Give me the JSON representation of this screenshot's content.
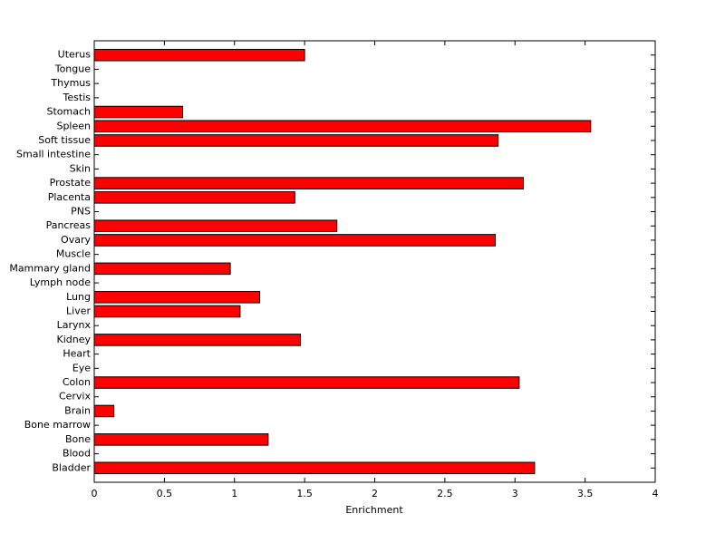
{
  "chart_data": {
    "type": "bar",
    "orientation": "horizontal",
    "xlabel": "Enrichment",
    "categories": [
      "Bladder",
      "Blood",
      "Bone",
      "Bone marrow",
      "Brain",
      "Cervix",
      "Colon",
      "Eye",
      "Heart",
      "Kidney",
      "Larynx",
      "Liver",
      "Lung",
      "Lymph node",
      "Mammary gland",
      "Muscle",
      "Ovary",
      "Pancreas",
      "PNS",
      "Placenta",
      "Prostate",
      "Skin",
      "Small intestine",
      "Soft tissue",
      "Spleen",
      "Stomach",
      "Testis",
      "Thymus",
      "Tongue",
      "Uterus"
    ],
    "values": [
      3.14,
      0,
      1.24,
      0,
      0.14,
      0,
      3.03,
      0,
      0,
      1.47,
      0,
      1.04,
      1.18,
      0,
      0.97,
      0,
      2.86,
      1.73,
      0,
      1.43,
      3.06,
      0,
      0,
      2.88,
      3.54,
      0.63,
      0,
      0,
      0,
      1.5
    ],
    "color": "#ff0000",
    "xlim": [
      0,
      4
    ],
    "xticks": [
      0,
      0.5,
      1,
      1.5,
      2,
      2.5,
      3,
      3.5,
      4
    ]
  }
}
